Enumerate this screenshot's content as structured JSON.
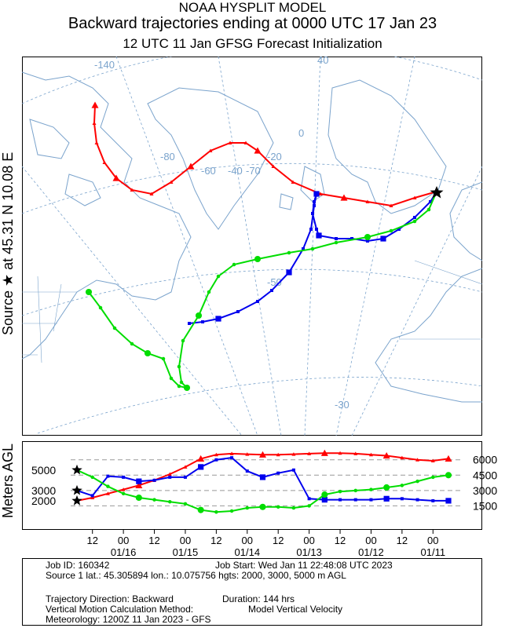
{
  "header": {
    "title_line1": "NOAA HYSPLIT MODEL",
    "title_line2": "Backward trajectories ending at 0000 UTC 17 Jan 23",
    "title_line3": "12 UTC 11 Jan    GFSG  Forecast Initialization"
  },
  "side_label": "Source ★ at    45.31 N    10.08 E",
  "map": {
    "graticule_labels": [
      "-140",
      "40",
      "0",
      "-20",
      "-40",
      "-60",
      "-70",
      "-50",
      "-30",
      "-80"
    ],
    "colors": {
      "coast": "#7aa3cc",
      "grid": "#7aa3cc",
      "red": "#ff0000",
      "blue": "#0000ee",
      "green": "#00dd00"
    }
  },
  "chart_data": {
    "type": "line",
    "title": "",
    "ylabel": "Meters AGL",
    "y_ticks_right": [
      "6000",
      "4500",
      "3000",
      "1500"
    ],
    "start_heights_left": [
      "5000",
      "3000",
      "2000"
    ],
    "x_tick_labels": [
      {
        "hour": "12",
        "date": ""
      },
      {
        "hour": "00",
        "date": "01/16"
      },
      {
        "hour": "12",
        "date": ""
      },
      {
        "hour": "00",
        "date": "01/15"
      },
      {
        "hour": "12",
        "date": ""
      },
      {
        "hour": "00",
        "date": "01/14"
      },
      {
        "hour": "12",
        "date": ""
      },
      {
        "hour": "00",
        "date": "01/13"
      },
      {
        "hour": "12",
        "date": ""
      },
      {
        "hour": "00",
        "date": "01/12"
      },
      {
        "hour": "12",
        "date": ""
      },
      {
        "hour": "00",
        "date": "01/11"
      }
    ],
    "x_unit": "hours back from 0000 UTC 17 Jan",
    "xlim": [
      0,
      144
    ],
    "ylim": [
      0,
      6900
    ],
    "series": [
      {
        "name": "",
        "color": "#ff0000",
        "marker": "triangle",
        "start_height": 2000,
        "x": [
          0,
          6,
          12,
          18,
          24,
          30,
          36,
          42,
          48,
          54,
          60,
          66,
          72,
          78,
          84,
          90,
          96,
          102,
          108,
          114,
          120,
          126,
          132,
          138,
          144
        ],
        "y": [
          2000,
          2300,
          2700,
          3100,
          3500,
          4000,
          4600,
          5300,
          6100,
          6500,
          6600,
          6550,
          6500,
          6500,
          6550,
          6600,
          6650,
          6650,
          6600,
          6500,
          6400,
          6200,
          6000,
          5900,
          6100
        ]
      },
      {
        "name": "",
        "color": "#0000ee",
        "marker": "square",
        "start_height": 3000,
        "x": [
          0,
          6,
          12,
          18,
          24,
          30,
          36,
          42,
          48,
          54,
          60,
          66,
          72,
          78,
          84,
          90,
          96,
          102,
          108,
          114,
          120,
          126,
          132,
          138,
          144
        ],
        "y": [
          3000,
          2500,
          4400,
          4300,
          3900,
          4000,
          4300,
          4300,
          5300,
          6000,
          6200,
          4900,
          4300,
          4700,
          5000,
          2200,
          2100,
          2100,
          2100,
          2100,
          2200,
          2200,
          2100,
          2000,
          2000
        ]
      },
      {
        "name": "",
        "color": "#00dd00",
        "marker": "circle",
        "start_height": 5000,
        "x": [
          0,
          6,
          12,
          18,
          24,
          30,
          36,
          42,
          48,
          54,
          60,
          66,
          72,
          78,
          84,
          90,
          96,
          102,
          108,
          114,
          120,
          126,
          132,
          138,
          144
        ],
        "y": [
          5000,
          4300,
          3400,
          2700,
          2300,
          2100,
          1900,
          1700,
          1100,
          900,
          1000,
          1300,
          1400,
          1400,
          1300,
          1500,
          2600,
          2900,
          3000,
          3100,
          3300,
          3500,
          3900,
          4300,
          4500
        ]
      }
    ]
  },
  "info": {
    "job_id": "Job ID: 160342",
    "job_start": "Job Start: Wed Jan 11 22:48:08 UTC 2023",
    "source": "Source 1 lat.: 45.305894  lon.: 10.075756  hgts: 2000, 3000, 5000 m AGL",
    "direction": "Trajectory Direction: Backward",
    "duration": "Duration: 144 hrs",
    "vertical": "Vertical Motion Calculation Method:",
    "vertical_value": "Model Vertical Velocity",
    "meteorology": "Meteorology: 1200Z 11 Jan 2023 - GFS"
  }
}
